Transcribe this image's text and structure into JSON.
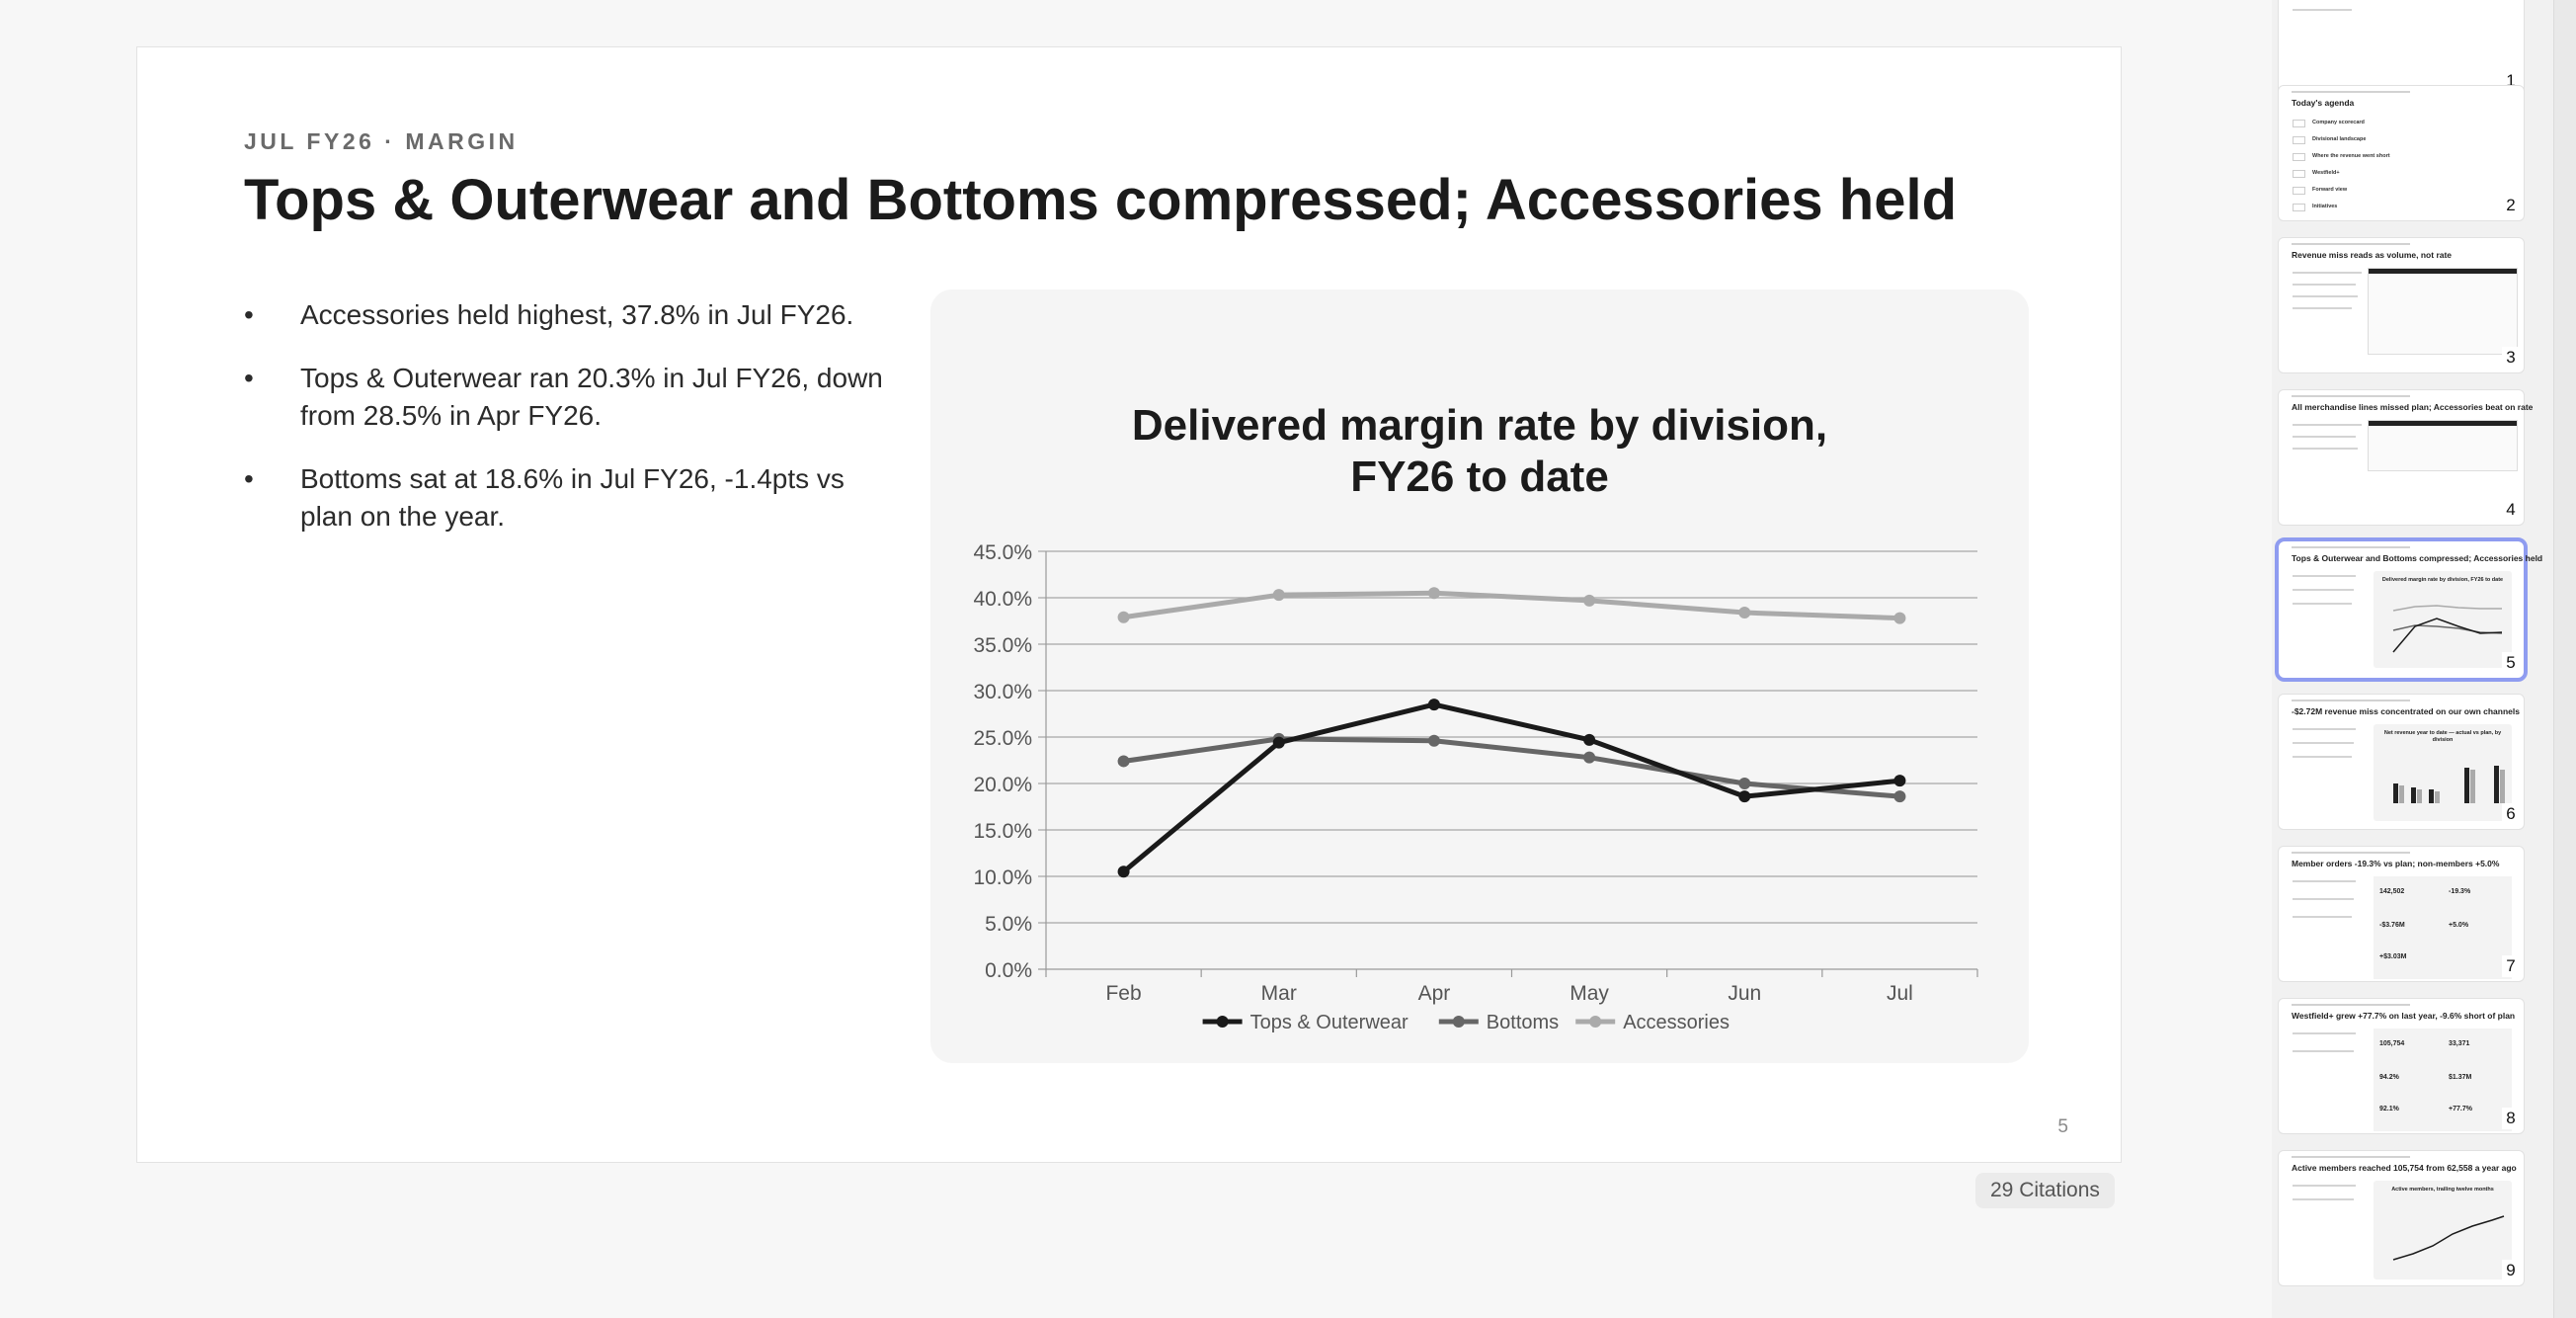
{
  "slide": {
    "eyebrow": "JUL FY26 · MARGIN",
    "title": "Tops & Outerwear and Bottoms compressed; Accessories held",
    "bullets": [
      "Accessories held highest, 37.8% in Jul FY26.",
      "Tops & Outerwear ran 20.3% in Jul FY26, down from 28.5% in Apr FY26.",
      "Bottoms sat at 18.6% in Jul FY26, -1.4pts vs plan on the year."
    ],
    "bullet_glyph": "•",
    "number": "5"
  },
  "citations_label": "29 Citations",
  "chart_data": {
    "type": "line",
    "title": "Delivered margin rate by division, FY26 to date",
    "title_lines": [
      "Delivered margin rate by division,",
      "FY26 to date"
    ],
    "categories": [
      "Feb",
      "Mar",
      "Apr",
      "May",
      "Jun",
      "Jul"
    ],
    "ylim": [
      0,
      45
    ],
    "yticks": [
      "0.0%",
      "5.0%",
      "10.0%",
      "15.0%",
      "20.0%",
      "25.0%",
      "30.0%",
      "35.0%",
      "40.0%",
      "45.0%"
    ],
    "grid": true,
    "legend": "bottom",
    "series": [
      {
        "name": "Tops & Outerwear",
        "color": "#1a1a1a",
        "values": [
          10.5,
          24.4,
          28.5,
          24.7,
          18.6,
          20.3
        ]
      },
      {
        "name": "Bottoms",
        "color": "#666666",
        "values": [
          22.4,
          24.8,
          24.6,
          22.8,
          20.0,
          18.6
        ]
      },
      {
        "name": "Accessories",
        "color": "#aaaaaa",
        "values": [
          37.9,
          40.3,
          40.5,
          39.7,
          38.4,
          37.8
        ]
      }
    ]
  },
  "thumbnails": [
    {
      "number": "1",
      "title": ""
    },
    {
      "number": "2",
      "title": "Today's agenda",
      "agenda": [
        "Company scorecard",
        "Divisional landscape",
        "Where the revenue went short",
        "Westfield+",
        "Forward view",
        "Initiatives"
      ]
    },
    {
      "number": "3",
      "title": "Revenue miss reads as volume, not rate"
    },
    {
      "number": "4",
      "title": "All merchandise lines missed plan; Accessories beat on rate"
    },
    {
      "number": "5",
      "title": "Tops & Outerwear and Bottoms compressed; Accessories held",
      "chart_title": "Delivered margin rate by division, FY26 to date"
    },
    {
      "number": "6",
      "title": "-$2.72M revenue miss concentrated on our own channels",
      "chart_title": "Net revenue year to date — actual vs plan, by division"
    },
    {
      "number": "7",
      "title": "Member orders -19.3% vs plan; non-members +5.0%",
      "kpis": [
        "142,502",
        "-19.3%",
        "-$3.76M",
        "+5.0%",
        "+$3.03M"
      ]
    },
    {
      "number": "8",
      "title": "Westfield+ grew +77.7% on last year, -9.6% short of plan",
      "kpis": [
        "105,754",
        "33,371",
        "94.2%",
        "$1.37M",
        "92.1%",
        "+77.7%"
      ]
    },
    {
      "number": "9",
      "title": "Active members reached 105,754 from 62,558 a year ago",
      "chart_title": "Active members, trailing twelve months"
    }
  ]
}
